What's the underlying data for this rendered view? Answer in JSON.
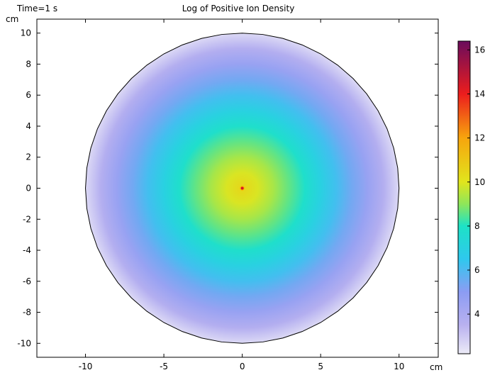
{
  "chart_data": {
    "type": "heatmap",
    "title": "Log of Positive Ion Density",
    "time_label": "Time=1 s",
    "xunit": "cm",
    "yunit": "cm",
    "xlim": [
      -13.1,
      12.5
    ],
    "ylim": [
      -10.9,
      10.9
    ],
    "xticks": [
      -10,
      -5,
      0,
      5,
      10
    ],
    "yticks": [
      -10,
      -8,
      -6,
      -4,
      -2,
      0,
      2,
      4,
      6,
      8,
      10
    ],
    "domain": {
      "shape": "disk",
      "center": [
        0,
        0
      ],
      "radius": 10
    },
    "hotspot": {
      "x": 0,
      "y": 0,
      "value": 16.3
    },
    "radial_profile": [
      {
        "r": 0,
        "value": 10.5
      },
      {
        "r": 1,
        "value": 9.9
      },
      {
        "r": 2,
        "value": 9.3
      },
      {
        "r": 3,
        "value": 8.6
      },
      {
        "r": 4,
        "value": 7.8
      },
      {
        "r": 5,
        "value": 7.0
      },
      {
        "r": 6,
        "value": 6.2
      },
      {
        "r": 7,
        "value": 5.4
      },
      {
        "r": 8,
        "value": 4.6
      },
      {
        "r": 9,
        "value": 3.7
      },
      {
        "r": 10,
        "value": 2.6
      }
    ],
    "colorbar": {
      "min": 2.2,
      "max": 16.4,
      "ticks": [
        4,
        6,
        8,
        10,
        12,
        14,
        16
      ],
      "colormap": [
        {
          "v": 2.2,
          "color": "#ecebf7"
        },
        {
          "v": 3.5,
          "color": "#b9b1ef"
        },
        {
          "v": 5.0,
          "color": "#8c9cf3"
        },
        {
          "v": 6.5,
          "color": "#2fc8ee"
        },
        {
          "v": 8.0,
          "color": "#1de2c6"
        },
        {
          "v": 9.0,
          "color": "#8ee65a"
        },
        {
          "v": 10.0,
          "color": "#e1e51d"
        },
        {
          "v": 12.0,
          "color": "#f7a50d"
        },
        {
          "v": 14.0,
          "color": "#ec1d1d"
        },
        {
          "v": 16.4,
          "color": "#6a0c5c"
        }
      ]
    }
  }
}
